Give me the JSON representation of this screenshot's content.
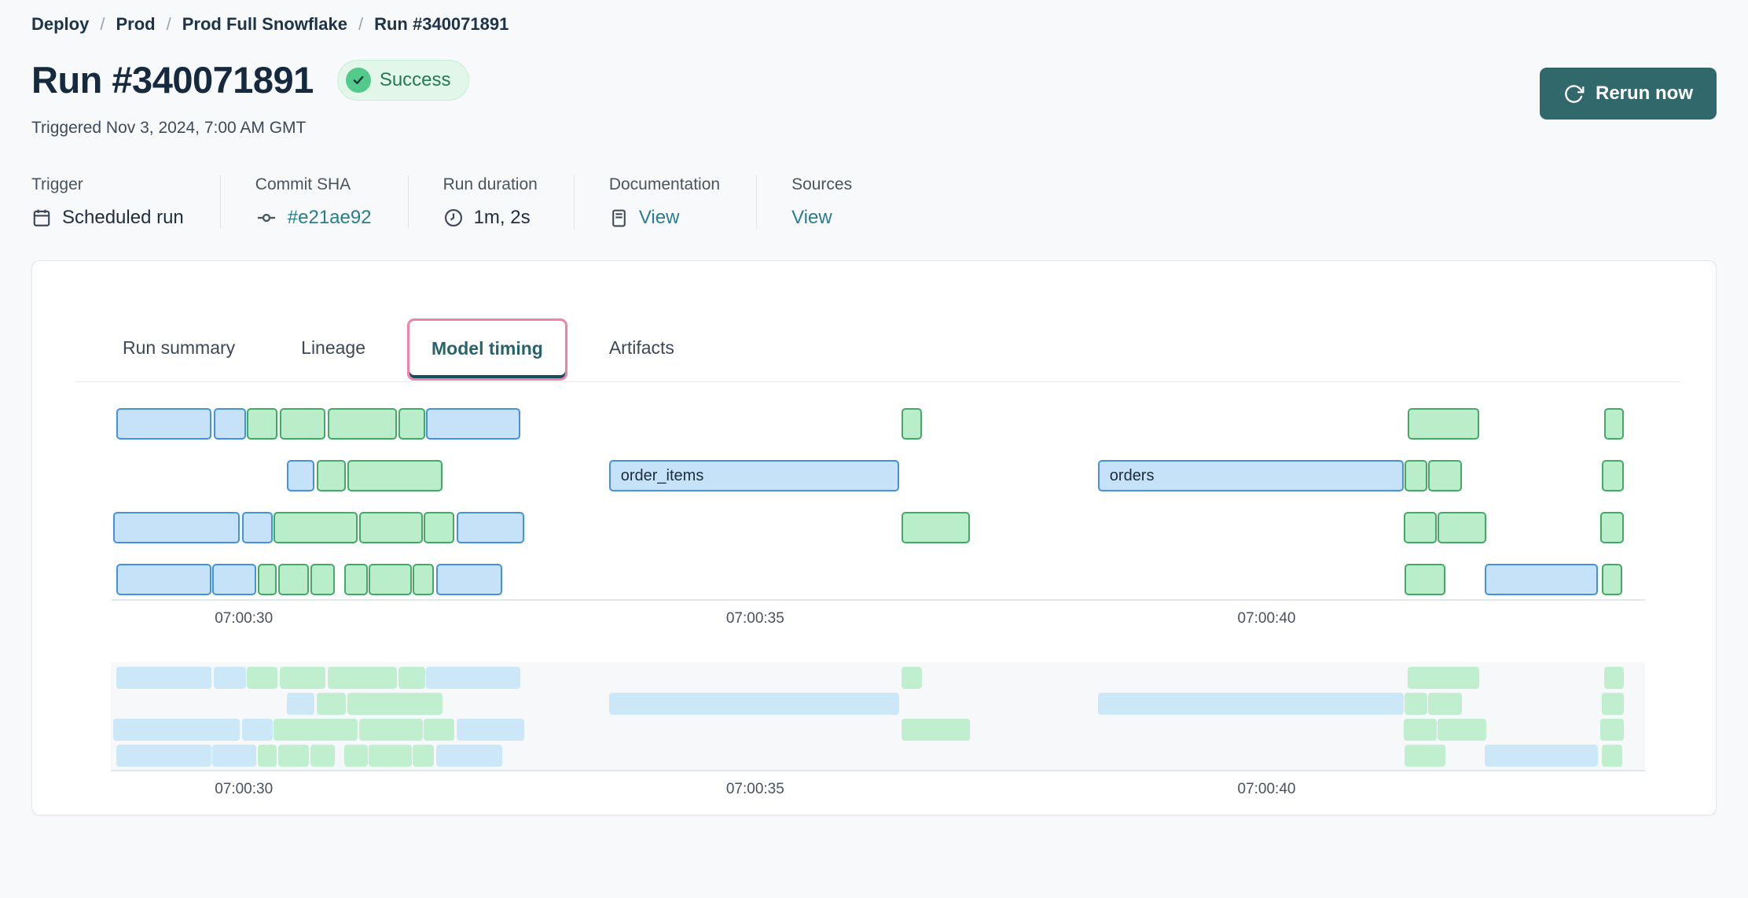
{
  "breadcrumb": {
    "separator": "/",
    "items": [
      {
        "label": "Deploy"
      },
      {
        "label": "Prod"
      },
      {
        "label": "Prod Full Snowflake"
      },
      {
        "label": "Run #340071891"
      }
    ]
  },
  "header": {
    "title": "Run #340071891",
    "status": "Success",
    "triggered": "Triggered Nov 3, 2024, 7:00 AM GMT",
    "rerun_label": "Rerun now"
  },
  "meta": {
    "trigger": {
      "label": "Trigger",
      "value": "Scheduled run",
      "icon": "calendar-icon"
    },
    "commit": {
      "label": "Commit SHA",
      "value": "#e21ae92",
      "icon": "commit-icon"
    },
    "duration": {
      "label": "Run duration",
      "value": "1m, 2s",
      "icon": "clock-icon"
    },
    "documentation": {
      "label": "Documentation",
      "value": "View",
      "icon": "document-icon"
    },
    "sources": {
      "label": "Sources",
      "value": "View"
    }
  },
  "tabs": [
    {
      "label": "Run summary",
      "active": false
    },
    {
      "label": "Lineage",
      "active": false
    },
    {
      "label": "Model timing",
      "active": true
    },
    {
      "label": "Artifacts",
      "active": false
    }
  ],
  "colors": {
    "page_bg": "#f7f9fa",
    "accent_teal_button": "#31686c",
    "link_teal": "#2a7d8c",
    "success_bg": "#e2f7e9",
    "success_icon": "#53c98a",
    "success_text": "#257a50",
    "highlight_pink": "#ef82aa",
    "active_tab_text": "#2a616e",
    "active_tab_underline": "#174e5c",
    "bar_blue_fill": "#c6e2f8",
    "bar_blue_border": "#4591de",
    "bar_green_fill": "#baeeca",
    "bar_green_border": "#44a967",
    "mini_blue": "#cbe7f8",
    "mini_green": "#c0efd0",
    "mini_bg": "#f6f8f9"
  },
  "chart_data": {
    "type": "gantt",
    "title": "Model timing",
    "time_unit": "seconds after 07:00:00 GMT",
    "has_overview_copy": true,
    "axis": {
      "t_min_s": 28.7,
      "t_max_s": 43.7,
      "ticks": [
        {
          "t": 30,
          "label": "07:00:30"
        },
        {
          "t": 35,
          "label": "07:00:35"
        },
        {
          "t": 40,
          "label": "07:00:40"
        }
      ]
    },
    "rows": [
      [
        {
          "s": 28.75,
          "e": 29.68,
          "c": "blue"
        },
        {
          "s": 29.71,
          "e": 30.02,
          "c": "blue"
        },
        {
          "s": 30.03,
          "e": 30.33,
          "c": "green"
        },
        {
          "s": 30.35,
          "e": 30.8,
          "c": "green"
        },
        {
          "s": 30.82,
          "e": 31.5,
          "c": "green"
        },
        {
          "s": 31.51,
          "e": 31.77,
          "c": "green"
        },
        {
          "s": 31.78,
          "e": 32.7,
          "c": "blue"
        },
        {
          "s": 36.43,
          "e": 36.63,
          "c": "green"
        },
        {
          "s": 41.38,
          "e": 42.08,
          "c": "green"
        },
        {
          "s": 43.3,
          "e": 43.49,
          "c": "green"
        }
      ],
      [
        {
          "s": 30.42,
          "e": 30.69,
          "c": "blue"
        },
        {
          "s": 30.71,
          "e": 31.0,
          "c": "green"
        },
        {
          "s": 31.01,
          "e": 31.94,
          "c": "green"
        },
        {
          "s": 33.57,
          "e": 36.41,
          "c": "blue",
          "label": "order_items"
        },
        {
          "s": 38.35,
          "e": 41.34,
          "c": "blue",
          "label": "orders"
        },
        {
          "s": 41.35,
          "e": 41.57,
          "c": "green"
        },
        {
          "s": 41.58,
          "e": 41.91,
          "c": "green"
        },
        {
          "s": 43.28,
          "e": 43.49,
          "c": "green"
        }
      ],
      [
        {
          "s": 28.72,
          "e": 29.96,
          "c": "blue"
        },
        {
          "s": 29.98,
          "e": 30.28,
          "c": "blue"
        },
        {
          "s": 30.29,
          "e": 31.11,
          "c": "green"
        },
        {
          "s": 31.13,
          "e": 31.75,
          "c": "green"
        },
        {
          "s": 31.76,
          "e": 32.06,
          "c": "green"
        },
        {
          "s": 32.08,
          "e": 32.74,
          "c": "blue"
        },
        {
          "s": 36.43,
          "e": 37.1,
          "c": "green"
        },
        {
          "s": 41.34,
          "e": 41.66,
          "c": "green"
        },
        {
          "s": 41.67,
          "e": 42.15,
          "c": "green"
        },
        {
          "s": 43.26,
          "e": 43.49,
          "c": "green"
        }
      ],
      [
        {
          "s": 28.75,
          "e": 29.68,
          "c": "blue"
        },
        {
          "s": 29.69,
          "e": 30.12,
          "c": "blue"
        },
        {
          "s": 30.14,
          "e": 30.32,
          "c": "green"
        },
        {
          "s": 30.34,
          "e": 30.64,
          "c": "green"
        },
        {
          "s": 30.65,
          "e": 30.89,
          "c": "green"
        },
        {
          "s": 30.98,
          "e": 31.21,
          "c": "green"
        },
        {
          "s": 31.22,
          "e": 31.64,
          "c": "green"
        },
        {
          "s": 31.65,
          "e": 31.86,
          "c": "green"
        },
        {
          "s": 31.88,
          "e": 32.53,
          "c": "blue"
        },
        {
          "s": 41.35,
          "e": 41.75,
          "c": "green"
        },
        {
          "s": 42.13,
          "e": 43.24,
          "c": "blue"
        },
        {
          "s": 43.28,
          "e": 43.48,
          "c": "green"
        }
      ]
    ]
  }
}
